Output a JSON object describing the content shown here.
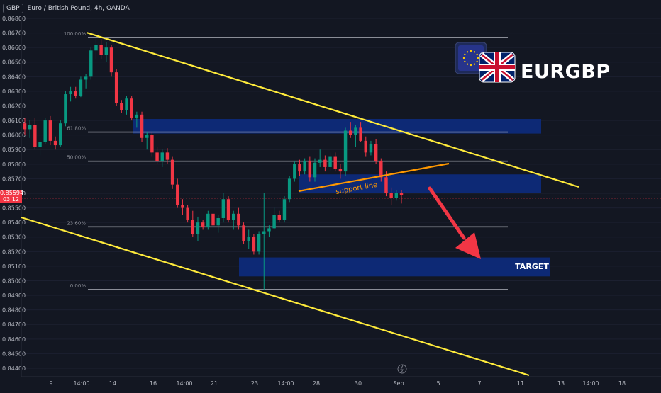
{
  "header": {
    "currency_badge": "GBP",
    "title": "Euro / British Pound, 4h, OANDA"
  },
  "brand_label": "EURGBP",
  "target_label": "TARGET",
  "support_label": "support line",
  "current_price": {
    "value": "0.85594",
    "countdown": "03:12",
    "numeric": 0.85594,
    "color": "#f23645"
  },
  "colors": {
    "background": "#131722",
    "up": "#089981",
    "down": "#f23645",
    "channel": "#ffeb3b",
    "zone": "#0d2a7a",
    "fib": "#b2b5be",
    "arrow": "#f23645",
    "support": "#ff9800"
  },
  "chart_data": {
    "type": "candlestick",
    "title": "Euro / British Pound, 4h, OANDA",
    "y_axis": {
      "ticks": [
        "0.86800",
        "0.86700",
        "0.86600",
        "0.86500",
        "0.86400",
        "0.86300",
        "0.86200",
        "0.86100",
        "0.86000",
        "0.85900",
        "0.85800",
        "0.85700",
        "0.85600",
        "0.85500",
        "0.85400",
        "0.85300",
        "0.85200",
        "0.85100",
        "0.85000",
        "0.84900",
        "0.84800",
        "0.84700",
        "0.84600",
        "0.84500",
        "0.84400"
      ],
      "range": [
        0.8436,
        0.8683
      ]
    },
    "x_axis": {
      "ticks": [
        "9",
        "14:00",
        "14",
        "16",
        "14:00",
        "21",
        "23",
        "14:00",
        "28",
        "30",
        "Sep",
        "5",
        "7",
        "11",
        "13",
        "14:00",
        "18"
      ]
    },
    "fibonacci": [
      {
        "label": "100.00%",
        "price": 0.8667
      },
      {
        "label": "61.80%",
        "price": 0.8602
      },
      {
        "label": "50.00%",
        "price": 0.8582
      },
      {
        "label": "23.60%",
        "price": 0.8537
      },
      {
        "label": "0.00%",
        "price": 0.8494
      }
    ],
    "zones": [
      {
        "name": "upper-resistance",
        "top": 0.8611,
        "bottom": 0.8601
      },
      {
        "name": "breakout-zone",
        "top": 0.8573,
        "bottom": 0.856
      },
      {
        "name": "target-zone",
        "top": 0.8516,
        "bottom": 0.8503
      }
    ],
    "candles": [
      [
        0.8608,
        0.8612,
        0.86,
        0.8604
      ],
      [
        0.8604,
        0.861,
        0.8598,
        0.8607
      ],
      [
        0.8607,
        0.8612,
        0.859,
        0.8592
      ],
      [
        0.8592,
        0.8598,
        0.8586,
        0.8595
      ],
      [
        0.8595,
        0.8612,
        0.8594,
        0.861
      ],
      [
        0.861,
        0.8613,
        0.8593,
        0.8596
      ],
      [
        0.8596,
        0.8599,
        0.859,
        0.8593
      ],
      [
        0.8593,
        0.861,
        0.8592,
        0.8608
      ],
      [
        0.8608,
        0.863,
        0.8606,
        0.8628
      ],
      [
        0.8628,
        0.8633,
        0.8623,
        0.863
      ],
      [
        0.863,
        0.8633,
        0.8625,
        0.8627
      ],
      [
        0.8627,
        0.864,
        0.8626,
        0.8638
      ],
      [
        0.8638,
        0.8642,
        0.8632,
        0.864
      ],
      [
        0.864,
        0.866,
        0.8638,
        0.8658
      ],
      [
        0.8658,
        0.8667,
        0.8652,
        0.8662
      ],
      [
        0.8662,
        0.8666,
        0.8652,
        0.8655
      ],
      [
        0.8655,
        0.8664,
        0.865,
        0.866
      ],
      [
        0.866,
        0.8662,
        0.864,
        0.8643
      ],
      [
        0.8643,
        0.8645,
        0.862,
        0.8622
      ],
      [
        0.8622,
        0.8624,
        0.8615,
        0.8617
      ],
      [
        0.8617,
        0.8627,
        0.8614,
        0.8625
      ],
      [
        0.8625,
        0.8627,
        0.861,
        0.8612
      ],
      [
        0.8612,
        0.8616,
        0.8605,
        0.8614
      ],
      [
        0.8614,
        0.8616,
        0.8595,
        0.8598
      ],
      [
        0.8598,
        0.8602,
        0.859,
        0.86
      ],
      [
        0.86,
        0.8602,
        0.8585,
        0.8588
      ],
      [
        0.8588,
        0.8592,
        0.858,
        0.8582
      ],
      [
        0.8582,
        0.859,
        0.8578,
        0.8588
      ],
      [
        0.8588,
        0.8591,
        0.858,
        0.8583
      ],
      [
        0.8583,
        0.8585,
        0.8563,
        0.8566
      ],
      [
        0.8566,
        0.857,
        0.855,
        0.8552
      ],
      [
        0.8552,
        0.8556,
        0.8545,
        0.855
      ],
      [
        0.855,
        0.8552,
        0.854,
        0.8542
      ],
      [
        0.8542,
        0.8548,
        0.853,
        0.8532
      ],
      [
        0.8532,
        0.8544,
        0.8527,
        0.854
      ],
      [
        0.854,
        0.8542,
        0.8535,
        0.8537
      ],
      [
        0.8537,
        0.8548,
        0.8535,
        0.8546
      ],
      [
        0.8546,
        0.8548,
        0.8536,
        0.8538
      ],
      [
        0.8538,
        0.8545,
        0.8533,
        0.8543
      ],
      [
        0.8543,
        0.856,
        0.854,
        0.8556
      ],
      [
        0.8556,
        0.8558,
        0.854,
        0.8542
      ],
      [
        0.8542,
        0.8548,
        0.8535,
        0.8546
      ],
      [
        0.8546,
        0.855,
        0.8535,
        0.8538
      ],
      [
        0.8538,
        0.854,
        0.8525,
        0.8527
      ],
      [
        0.8527,
        0.8535,
        0.8522,
        0.853
      ],
      [
        0.853,
        0.8532,
        0.8518,
        0.852
      ],
      [
        0.852,
        0.8534,
        0.8518,
        0.8532
      ],
      [
        0.8532,
        0.856,
        0.8494,
        0.8534
      ],
      [
        0.8534,
        0.8538,
        0.853,
        0.8536
      ],
      [
        0.8536,
        0.855,
        0.8535,
        0.8545
      ],
      [
        0.8545,
        0.8548,
        0.854,
        0.8542
      ],
      [
        0.8542,
        0.8558,
        0.854,
        0.8556
      ],
      [
        0.8556,
        0.8572,
        0.8554,
        0.857
      ],
      [
        0.857,
        0.8582,
        0.8568,
        0.858
      ],
      [
        0.858,
        0.8583,
        0.8572,
        0.8575
      ],
      [
        0.8575,
        0.8584,
        0.8573,
        0.8582
      ],
      [
        0.8582,
        0.8585,
        0.8568,
        0.8571
      ],
      [
        0.8571,
        0.8584,
        0.8568,
        0.8581
      ],
      [
        0.8581,
        0.859,
        0.8578,
        0.8583
      ],
      [
        0.8583,
        0.8586,
        0.8575,
        0.8578
      ],
      [
        0.8578,
        0.8588,
        0.8575,
        0.8585
      ],
      [
        0.8585,
        0.8588,
        0.8575,
        0.8577
      ],
      [
        0.8577,
        0.858,
        0.857,
        0.8575
      ],
      [
        0.8575,
        0.8605,
        0.8572,
        0.8603
      ],
      [
        0.8603,
        0.8609,
        0.8598,
        0.86
      ],
      [
        0.86,
        0.8607,
        0.8592,
        0.8605
      ],
      [
        0.8605,
        0.8609,
        0.8595,
        0.8596
      ],
      [
        0.8596,
        0.8599,
        0.8585,
        0.8588
      ],
      [
        0.8588,
        0.8596,
        0.8586,
        0.8594
      ],
      [
        0.8594,
        0.8597,
        0.858,
        0.8582
      ],
      [
        0.8582,
        0.8584,
        0.8568,
        0.8571
      ],
      [
        0.8571,
        0.8575,
        0.8558,
        0.856
      ],
      [
        0.856,
        0.8564,
        0.8552,
        0.8557
      ],
      [
        0.8557,
        0.8562,
        0.8555,
        0.856
      ],
      [
        0.856,
        0.8562,
        0.8553,
        0.8559
      ]
    ]
  }
}
